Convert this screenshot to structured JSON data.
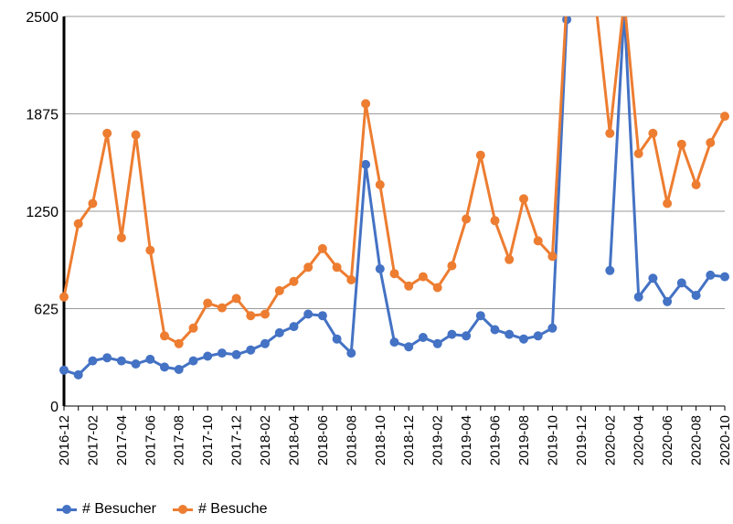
{
  "chart_data": {
    "type": "line",
    "title": "",
    "xlabel": "",
    "ylabel": "",
    "ylim": [
      0,
      2500
    ],
    "y_ticks": [
      "0",
      "625",
      "1250",
      "1875",
      "2500"
    ],
    "grid": true,
    "legend_position": "bottom-left",
    "x": [
      "2016-12",
      "2017-01",
      "2017-02",
      "2017-03",
      "2017-04",
      "2017-05",
      "2017-06",
      "2017-07",
      "2017-08",
      "2017-09",
      "2017-10",
      "2017-11",
      "2017-12",
      "2018-01",
      "2018-02",
      "2018-03",
      "2018-04",
      "2018-05",
      "2018-06",
      "2018-07",
      "2018-08",
      "2018-09",
      "2018-10",
      "2018-11",
      "2018-12",
      "2019-01",
      "2019-02",
      "2019-03",
      "2019-04",
      "2019-05",
      "2019-06",
      "2019-07",
      "2019-08",
      "2019-09",
      "2019-10",
      "2019-11",
      "2019-12",
      "2020-01",
      "2020-02",
      "2020-03",
      "2020-04",
      "2020-05",
      "2020-06",
      "2020-07",
      "2020-08",
      "2020-09",
      "2020-10"
    ],
    "x_tick_labels": [
      "2016-12",
      "2017-02",
      "2017-04",
      "2017-06",
      "2017-08",
      "2017-10",
      "2017-12",
      "2018-02",
      "2018-04",
      "2018-06",
      "2018-08",
      "2018-10",
      "2018-12",
      "2019-02",
      "2019-04",
      "2019-06",
      "2019-08",
      "2019-10",
      "2019-12",
      "2020-02",
      "2020-04",
      "2020-06",
      "2020-08",
      "2020-10"
    ],
    "series": [
      {
        "name": "# Besucher",
        "color": "#4472C4",
        "values": [
          230,
          200,
          290,
          310,
          290,
          270,
          300,
          250,
          235,
          290,
          320,
          340,
          330,
          360,
          400,
          470,
          510,
          590,
          580,
          430,
          340,
          1550,
          880,
          410,
          380,
          440,
          400,
          460,
          450,
          580,
          490,
          460,
          430,
          450,
          500,
          2480,
          null,
          null,
          870,
          2550,
          700,
          820,
          670,
          790,
          710,
          840,
          830
        ]
      },
      {
        "name": "# Besuche",
        "color": "#ED7D31",
        "values": [
          700,
          1170,
          1300,
          1750,
          1080,
          1740,
          1000,
          450,
          400,
          500,
          660,
          630,
          690,
          580,
          590,
          740,
          800,
          890,
          1010,
          890,
          810,
          1940,
          1420,
          850,
          770,
          830,
          760,
          900,
          1200,
          1610,
          1190,
          940,
          1330,
          1060,
          960,
          2600,
          null,
          2600,
          1750,
          2600,
          1620,
          1750,
          1300,
          1680,
          1420,
          1690,
          1860
        ]
      }
    ]
  }
}
